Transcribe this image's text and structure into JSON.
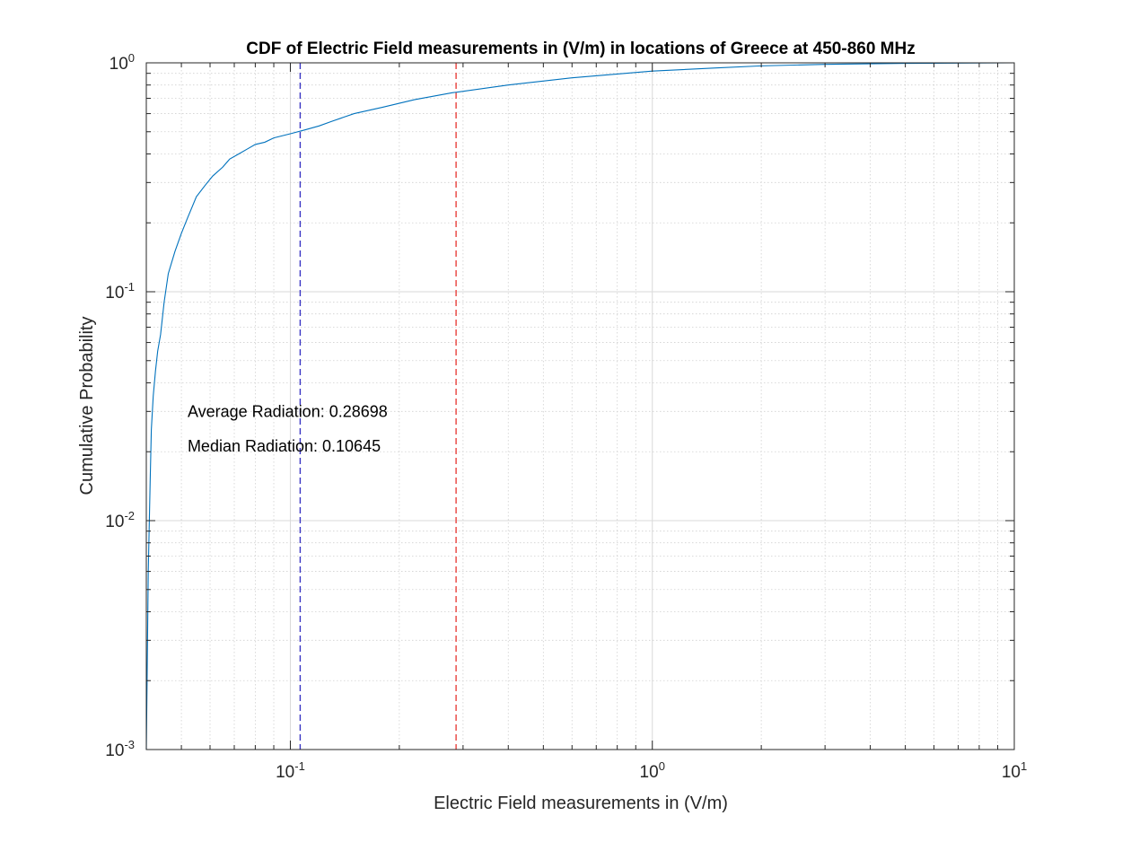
{
  "chart_data": {
    "type": "line",
    "title": "CDF of Electric Field measurements in (V/m) in locations of Greece at 450-860 MHz",
    "xlabel": "Electric Field measurements in (V/m)",
    "ylabel": "Cumulative Probability",
    "xscale": "log",
    "yscale": "log",
    "xlim": [
      0.04,
      10
    ],
    "ylim": [
      0.001,
      1
    ],
    "grid": true,
    "minor_grid": true,
    "x_ticks": [
      {
        "base": "10",
        "exp": "-1",
        "value": 0.1
      },
      {
        "base": "10",
        "exp": "0",
        "value": 1
      },
      {
        "base": "10",
        "exp": "1",
        "value": 10
      }
    ],
    "y_ticks": [
      {
        "base": "10",
        "exp": "-3",
        "value": 0.001
      },
      {
        "base": "10",
        "exp": "-2",
        "value": 0.01
      },
      {
        "base": "10",
        "exp": "-1",
        "value": 0.1
      },
      {
        "base": "10",
        "exp": "0",
        "value": 1
      }
    ],
    "series": [
      {
        "color": "#0072bd",
        "x": [
          0.04,
          0.0402,
          0.0405,
          0.041,
          0.0413,
          0.0418,
          0.0424,
          0.043,
          0.0438,
          0.0448,
          0.046,
          0.048,
          0.05,
          0.052,
          0.055,
          0.058,
          0.061,
          0.065,
          0.068,
          0.072,
          0.076,
          0.08,
          0.085,
          0.09,
          0.1,
          0.11,
          0.12,
          0.13,
          0.15,
          0.18,
          0.22,
          0.28,
          0.4,
          0.6,
          1.0,
          1.5,
          2.0,
          3.0,
          5.0,
          10.0
        ],
        "y": [
          0.001,
          0.002,
          0.006,
          0.015,
          0.025,
          0.035,
          0.045,
          0.055,
          0.065,
          0.09,
          0.12,
          0.15,
          0.18,
          0.21,
          0.26,
          0.29,
          0.32,
          0.35,
          0.38,
          0.4,
          0.42,
          0.44,
          0.45,
          0.47,
          0.49,
          0.51,
          0.53,
          0.555,
          0.6,
          0.64,
          0.69,
          0.74,
          0.8,
          0.86,
          0.92,
          0.95,
          0.97,
          0.985,
          0.995,
          1.0
        ]
      }
    ],
    "reference_lines": [
      {
        "x": 0.10645,
        "color": "#3a36c4",
        "style": "dashed"
      },
      {
        "x": 0.28698,
        "color": "#e8413c",
        "style": "dashed"
      }
    ],
    "annotations": [
      {
        "text": "Average Radiation: 0.28698",
        "x": 0.052,
        "y": 0.03
      },
      {
        "text": "Median Radiation: 0.10645",
        "x": 0.052,
        "y": 0.0212
      }
    ]
  }
}
